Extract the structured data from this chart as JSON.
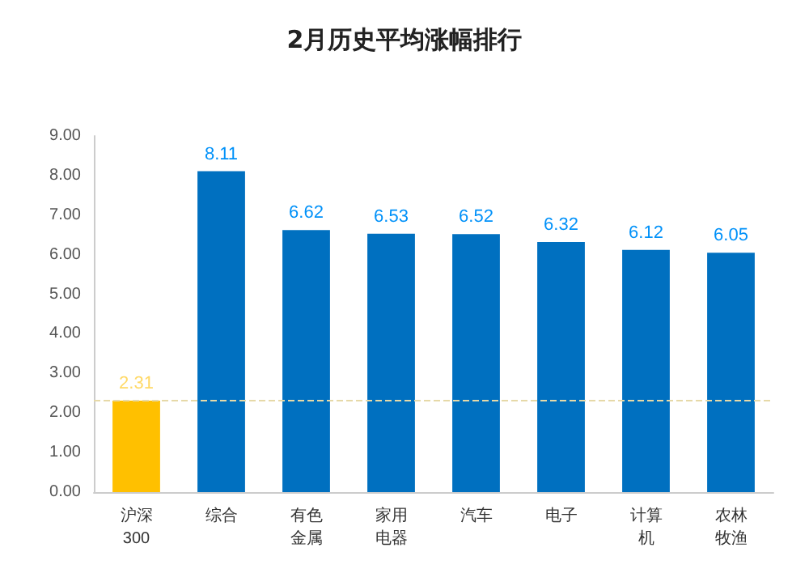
{
  "chart_data": {
    "type": "bar",
    "title": "2月历史平均涨幅排行",
    "categories": [
      "沪深300",
      "综合",
      "有色金属",
      "家用电器",
      "汽车",
      "电子",
      "计算机",
      "农林牧渔"
    ],
    "values": [
      2.31,
      8.11,
      6.62,
      6.53,
      6.52,
      6.32,
      6.12,
      6.05
    ],
    "colors": [
      "#ffc000",
      "#0070c0",
      "#0070c0",
      "#0070c0",
      "#0070c0",
      "#0070c0",
      "#0070c0",
      "#0070c0"
    ],
    "ylim": [
      0,
      9
    ],
    "yticks": [
      {
        "value": 0,
        "label": "0.00"
      },
      {
        "value": 1,
        "label": "1.00"
      },
      {
        "value": 2,
        "label": "2.00"
      },
      {
        "value": 3,
        "label": "3.00"
      },
      {
        "value": 4,
        "label": "4.00"
      },
      {
        "value": 5,
        "label": "5.00"
      },
      {
        "value": 6,
        "label": "6.00"
      },
      {
        "value": 7,
        "label": "7.00"
      },
      {
        "value": 8,
        "label": "8.00"
      },
      {
        "value": 9,
        "label": "9.00"
      }
    ],
    "data_labels": true,
    "grid": false,
    "ref_lines": [
      {
        "axis": "y",
        "value": 2.31,
        "label": null,
        "color": "#e6d9a8",
        "line_style": "dashed"
      }
    ]
  }
}
